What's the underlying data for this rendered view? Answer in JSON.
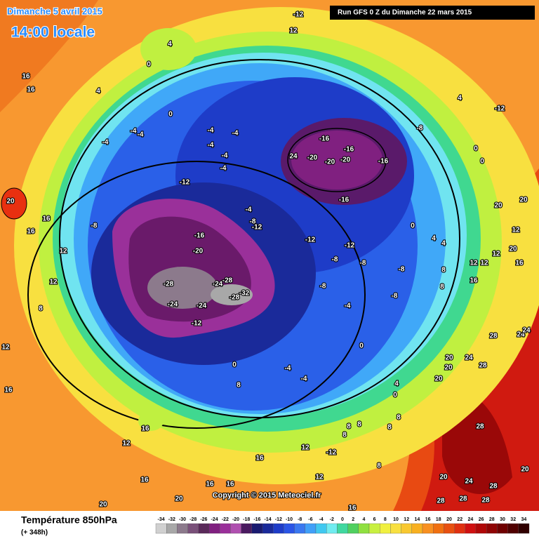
{
  "header": {
    "date": "Dimanche 5 avril 2015",
    "time": "14:00 locale",
    "run": "Run GFS 0 Z du Dimanche 22 mars 2015"
  },
  "map": {
    "copyright": "Copyright © 2015 Meteociel.fr",
    "contour_labels": [
      -12,
      12,
      4,
      0,
      16,
      16,
      4,
      0,
      -4,
      -4,
      -4,
      -4,
      -4,
      -4,
      -4,
      -4,
      -12,
      -16,
      -16,
      24,
      -20,
      -20,
      -20,
      -16,
      -16,
      -8,
      4,
      -12,
      0,
      0,
      20,
      16,
      16,
      -8,
      -4,
      -8,
      -12,
      -16,
      -20,
      -28,
      -24,
      -28,
      -32,
      -28,
      -24,
      -24,
      -12,
      -12,
      -12,
      -8,
      -8,
      -8,
      -8,
      -8,
      -4,
      0,
      4,
      4,
      20,
      20,
      12,
      20,
      12,
      16,
      12,
      12,
      16,
      8,
      8,
      12,
      12,
      8,
      12,
      16,
      0,
      8,
      -4,
      -4,
      0,
      4,
      0,
      20,
      20,
      20,
      24,
      28,
      28,
      24,
      24,
      28,
      20,
      20,
      24,
      28,
      28,
      28,
      28,
      16,
      12,
      12,
      -12,
      16,
      16,
      16,
      16,
      20,
      20,
      16,
      8,
      8,
      8,
      8,
      8,
      8,
      12
    ]
  },
  "legend": {
    "title": "Température 850hPa",
    "lead_time": "(+ 348h)",
    "ticks": [
      -34,
      -32,
      -30,
      -28,
      -26,
      -24,
      -22,
      -20,
      -18,
      -16,
      -14,
      -12,
      -10,
      -8,
      -6,
      -4,
      -2,
      0,
      2,
      4,
      6,
      8,
      10,
      12,
      14,
      16,
      18,
      20,
      22,
      24,
      26,
      28,
      30,
      32,
      34
    ],
    "colors": [
      "#d0d0d0",
      "#a8a8a8",
      "#8c7a8c",
      "#7a507a",
      "#5a2a5a",
      "#802080",
      "#9a309a",
      "#b050b0",
      "#4a1a60",
      "#1a1a70",
      "#1a2a9a",
      "#1e3cc8",
      "#2a55e6",
      "#3a78f0",
      "#40a0f8",
      "#40c8f0",
      "#70ecf0",
      "#40d8a0",
      "#50d060",
      "#90e040",
      "#c8f040",
      "#f0f040",
      "#f8e040",
      "#f8c830",
      "#f8b020",
      "#f89020",
      "#f07010",
      "#e85010",
      "#e03010",
      "#d01010",
      "#b00808",
      "#900404",
      "#700000",
      "#500000",
      "#300000"
    ]
  }
}
